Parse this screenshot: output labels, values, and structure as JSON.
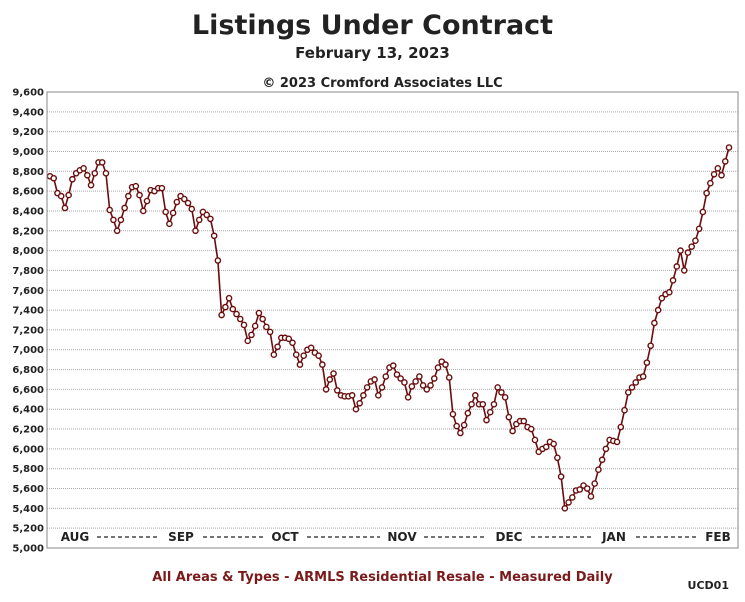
{
  "title": "Listings Under Contract",
  "subtitle": "February 13, 2023",
  "copyright": "© 2023 Cromford Associates LLC",
  "footer": "All Areas & Types - ARMLS Residential Resale - Measured Daily",
  "code": "UCD01",
  "colors": {
    "line": "#6b0d0d",
    "grid": "#aaaaaa",
    "footer": "#7a1a1a"
  },
  "chart_data": {
    "type": "line",
    "title": "Listings Under Contract",
    "ylim": [
      5000,
      9600
    ],
    "yticks": [
      5000,
      5200,
      5400,
      5600,
      5800,
      6000,
      6200,
      6400,
      6600,
      6800,
      7000,
      7200,
      7400,
      7600,
      7800,
      8000,
      8200,
      8400,
      8600,
      8800,
      9000,
      9200,
      9400,
      9600
    ],
    "xtick_labels": [
      "AUG",
      "SEP",
      "OCT",
      "NOV",
      "DEC",
      "JAN",
      "FEB"
    ],
    "grid": true,
    "marker": "open-circle",
    "series": [
      {
        "name": "",
        "values": [
          8750,
          8730,
          8580,
          8550,
          8430,
          8560,
          8720,
          8780,
          8810,
          8830,
          8760,
          8660,
          8780,
          8890,
          8890,
          8780,
          8410,
          8310,
          8200,
          8310,
          8430,
          8550,
          8640,
          8650,
          8560,
          8400,
          8500,
          8610,
          8600,
          8630,
          8630,
          8390,
          8270,
          8380,
          8490,
          8550,
          8520,
          8480,
          8420,
          8200,
          8310,
          8390,
          8360,
          8320,
          8150,
          7900,
          7350,
          7430,
          7520,
          7410,
          7360,
          7310,
          7250,
          7090,
          7150,
          7240,
          7370,
          7310,
          7230,
          7180,
          6950,
          7030,
          7120,
          7120,
          7110,
          7070,
          6950,
          6850,
          6940,
          7000,
          7020,
          6970,
          6940,
          6850,
          6600,
          6700,
          6760,
          6590,
          6540,
          6530,
          6530,
          6540,
          6400,
          6460,
          6540,
          6620,
          6680,
          6700,
          6540,
          6620,
          6730,
          6820,
          6840,
          6750,
          6710,
          6670,
          6520,
          6630,
          6680,
          6730,
          6640,
          6600,
          6640,
          6710,
          6820,
          6880,
          6850,
          6720,
          6350,
          6230,
          6160,
          6240,
          6360,
          6450,
          6540,
          6450,
          6450,
          6290,
          6370,
          6450,
          6620,
          6570,
          6520,
          6320,
          6180,
          6250,
          6280,
          6280,
          6220,
          6200,
          6090,
          5970,
          6000,
          6020,
          6070,
          6050,
          5910,
          5720,
          5400,
          5460,
          5510,
          5580,
          5590,
          5630,
          5600,
          5520,
          5650,
          5790,
          5890,
          6000,
          6090,
          6080,
          6070,
          6220,
          6390,
          6570,
          6620,
          6670,
          6720,
          6730,
          6870,
          7040,
          7270,
          7400,
          7520,
          7560,
          7580,
          7700,
          7840,
          8000,
          7800,
          7980,
          8040,
          8100,
          8220,
          8390,
          8580,
          8680,
          8770,
          8830,
          8760,
          8900,
          9040
        ]
      }
    ]
  }
}
